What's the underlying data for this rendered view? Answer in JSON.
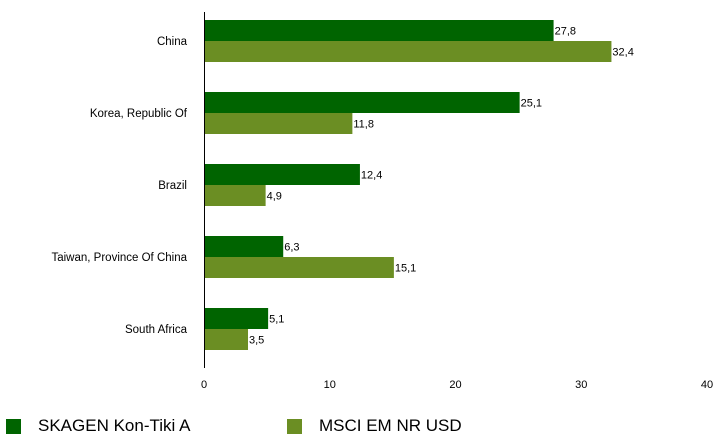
{
  "chart_data": {
    "type": "bar",
    "orientation": "horizontal",
    "categories": [
      "China",
      "Korea, Republic Of",
      "Brazil",
      "Taiwan, Province Of China",
      "South Africa"
    ],
    "series": [
      {
        "name": "SKAGEN Kon-Tiki A",
        "color": "#006400",
        "values": [
          27.8,
          25.1,
          12.4,
          6.3,
          5.1
        ],
        "labels": [
          "27,8",
          "25,1",
          "12,4",
          "6,3",
          "5,1"
        ]
      },
      {
        "name": "MSCI EM NR USD",
        "color": "#6b8e23",
        "values": [
          32.4,
          11.8,
          4.9,
          15.1,
          3.5
        ],
        "labels": [
          "32,4",
          "11,8",
          "4,9",
          "15,1",
          "3,5"
        ]
      }
    ],
    "xlim": [
      0,
      40
    ],
    "xticks": [
      0,
      10,
      20,
      30,
      40
    ],
    "xtick_labels": [
      "0",
      "10",
      "20",
      "30",
      "40"
    ],
    "grid": false,
    "legend_position": "bottom-left"
  }
}
